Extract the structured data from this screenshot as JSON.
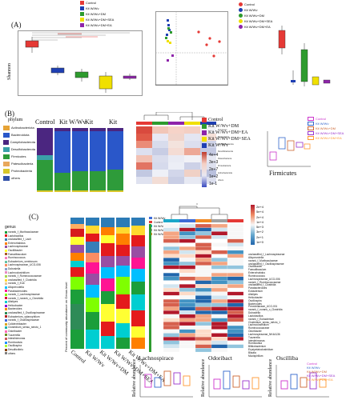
{
  "panels": {
    "a": {
      "letter": "(A)",
      "ylabel": "Shannon"
    },
    "b": {
      "letter": "(B)",
      "phylum_title": "phylum",
      "box_title": "Firmicutes"
    },
    "c": {
      "letter": "(C)",
      "genus_title": "genus",
      "stack_ylabel": "Percent of community abundance on Genus level"
    }
  },
  "groups": [
    "Control",
    "Kit W/Wv",
    "Kit W/Wv+DM",
    "Kit W/Wv+DM+SEA",
    "Kit W/Wv+DM+EA"
  ],
  "legend_a_left": [
    {
      "label": "Control",
      "color": "#e53935"
    },
    {
      "label": "Kit W/Wv",
      "color": "#1e3fb3"
    },
    {
      "label": "Kit W/Wv+DM",
      "color": "#2e9b2e"
    },
    {
      "label": "Kit W/Wv+DM+SEA",
      "color": "#f0e000"
    },
    {
      "label": "Kit W/Wv+DM+EA",
      "color": "#8e24aa"
    }
  ],
  "legend_a_right": [
    {
      "label": "Control",
      "color": "#e53935"
    },
    {
      "label": "Kit W/Wv",
      "color": "#1e3fb3"
    },
    {
      "label": "Kit W/Wv+DM",
      "color": "#2e9b2e"
    },
    {
      "label": "Kit W/Wv+DM+SEA",
      "color": "#f0e000"
    },
    {
      "label": "Kit W/Wv+DM+EA",
      "color": "#8e24aa"
    }
  ],
  "stack_b_labels": [
    "Control",
    "Kit W/Wv",
    "Kit",
    "Kit",
    "Kit"
  ],
  "phyla": [
    {
      "label": "Actinobacteriota",
      "color": "#e6a336"
    },
    {
      "label": "Bacteroidota",
      "color": "#2a57c9"
    },
    {
      "label": "Campilobacterota",
      "color": "#4b2680"
    },
    {
      "label": "Desulfobacterota",
      "color": "#3aa0a8"
    },
    {
      "label": "Firmicutes",
      "color": "#2e9b3a"
    },
    {
      "label": "Patescibacteria",
      "color": "#e8a85c"
    },
    {
      "label": "Proteobacteria",
      "color": "#d9c72a"
    },
    {
      "label": "others",
      "color": "#3050a8"
    }
  ],
  "heat_b_legend": [
    {
      "label": "Control",
      "color": "#e53935"
    },
    {
      "label": "Kit W/Wv+DM",
      "color": "#2e9b2e"
    },
    {
      "label": "Kit W/Wv+DM+EA",
      "color": "#8e24aa"
    },
    {
      "label": "Kit W/Wv+DM+SEA",
      "color": "#f0e000"
    },
    {
      "label": "Kit W/Wv",
      "color": "#1e3fb3"
    }
  ],
  "heat_b_scale": [
    "4e+4",
    "3e+3",
    "2e+7",
    "1e+2",
    "1e-1"
  ],
  "box_b_legend": [
    {
      "label": "Control",
      "color": "#cc33cc"
    },
    {
      "label": "Kit W/Wv",
      "color": "#3366cc"
    },
    {
      "label": "Kit W/Wv+DM",
      "color": "#cc6633"
    },
    {
      "label": "Kit W/Wv+DM+SEA",
      "color": "#9933cc"
    },
    {
      "label": "Kit W/Wv+DM+EA",
      "color": "#ff9933"
    }
  ],
  "stack_c_labels": [
    "Control",
    "Kit W/Wv",
    "Kit W/Wv+DM",
    "Kit W/Wv+DM+SEA",
    "Kit W/Wv+DM+EA"
  ],
  "heat_c_scale": [
    "2e+4",
    "5e+4",
    "2e+4",
    "1e+4",
    "5e+3",
    "3e+2",
    "2e+1",
    "1e+0"
  ],
  "genus_rows": [
    "unclassified_f_Lachnospiraceae",
    "Alloprevotella",
    "norank_f_Muribaculaceae",
    "unclassified_f_Oscillospiraceae",
    "Oscillibacter",
    "Faecalibaculum",
    "Enterorhabdus",
    "Ruminococcus",
    "Lachnospiraceae_UCG-006",
    "norank_f_Ruminococcaceae",
    "unclassified_f_Clostridia",
    "Parabacteroides",
    "Eubacterium",
    "Alistipes",
    "Helicobacter",
    "Oscillospira",
    "Bacteroides",
    "Prevotellaceae_UCG-001",
    "norank_f_norank_o_Clostridia",
    "Dubosiella",
    "Lactobacillus",
    "norank_f_Eubacterium",
    "Clostridium_sensu_stricto_1",
    "Lachnoclostridium",
    "Ruminococcaceae",
    "Odoribacter",
    "Lachnospiraceae_NK4A136",
    "Tuzzerella",
    "Intestinimonas",
    "Romboutsia",
    "Bifidobacterium",
    "Erysipelatoclostridium",
    "Blautia",
    "Mucispirillum"
  ],
  "genus_legend": [
    "norank_f_Muribaculaceae",
    "Lactobacillus",
    "unclassified_f_Lach",
    "Enterorhabdus",
    "Lachnospiraceae",
    "Oscillibacter",
    "Faecalibaculum",
    "Ruminococcus",
    "Eubacterium_ventriosum",
    "Lachnospiraceae_UCG-006",
    "Dubosiella",
    "Lachnoclostridium",
    "norank_f_Ruminococcaceae",
    "unclassified_f_Clostridia",
    "norank_f_Eub",
    "Alloprevotella",
    "Parabacteroides",
    "norank_f_Lachnospiraceae",
    "norank_f_norank_o_Clostridia",
    "Alistipes",
    "Helicobacter",
    "Bacteroides",
    "unclassified_f_Oscillospiraceae",
    "Eubacterium_xylanophilum",
    "norank_f_Oscillospiraceae",
    "Colidextribacter",
    "Clostridium_sensu_stricto_1",
    "Odoribacter",
    "Tuzzerella",
    "Intestinimonas",
    "Romboutsia",
    "Oscillospira",
    "Desulfovibrio",
    "others"
  ],
  "box_c": [
    {
      "title": "Lachnospirace",
      "ylabel": "Relative abundance"
    },
    {
      "title": "Odoribact",
      "ylabel": "Relative abundance"
    },
    {
      "title": "Oscilliba",
      "ylabel": "Relative abundance"
    }
  ]
}
